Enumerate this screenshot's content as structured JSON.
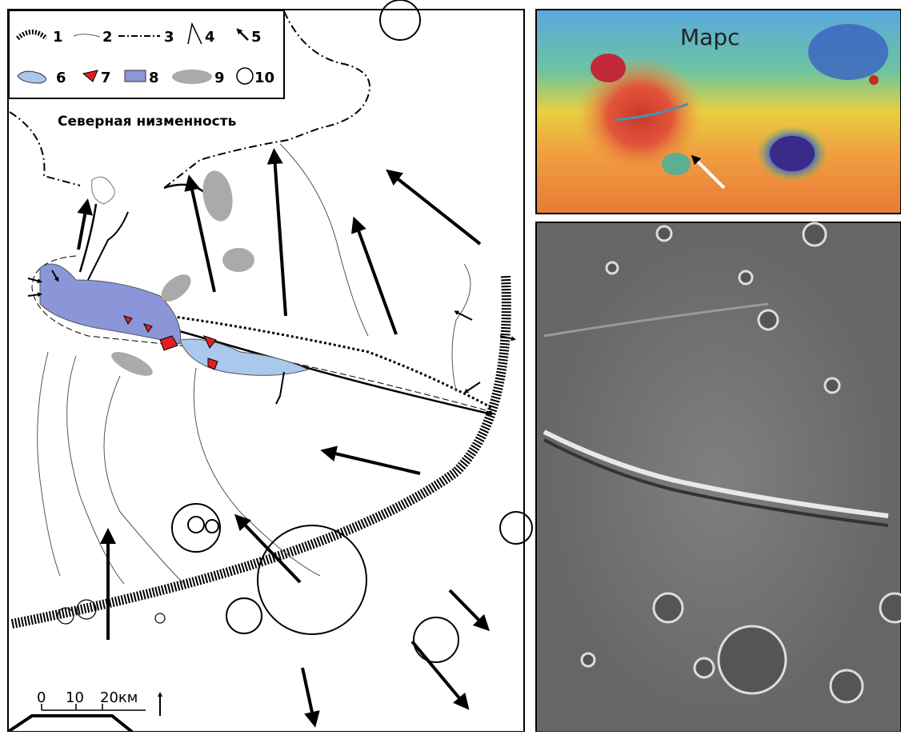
{
  "legend": {
    "items": [
      "1",
      "2",
      "3",
      "4",
      "5",
      "6",
      "7",
      "8",
      "9",
      "10"
    ]
  },
  "map": {
    "region_label": "Северная низменность",
    "scale": [
      "0",
      "10",
      "20км"
    ]
  },
  "inset": {
    "title": "Марс"
  }
}
